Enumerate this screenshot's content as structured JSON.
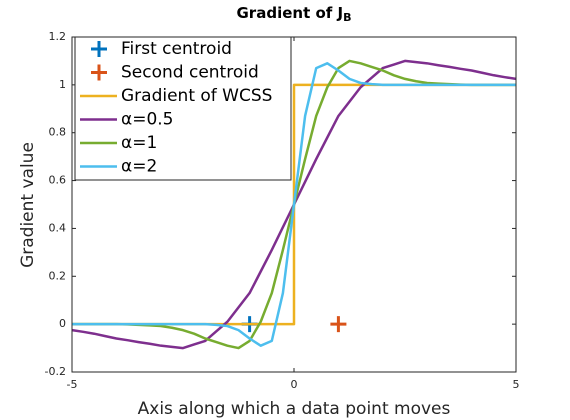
{
  "chart_data": {
    "type": "line",
    "title": "Gradient of J",
    "title_subscript": "B",
    "xlabel": "Axis along which a data point moves",
    "ylabel": "Gradient value",
    "xlim": [
      -5,
      5
    ],
    "ylim": [
      -0.2,
      1.2
    ],
    "xticks": [
      -5,
      0,
      5
    ],
    "yticks": [
      -0.2,
      0,
      0.2,
      0.4,
      0.6,
      0.8,
      1,
      1.2
    ],
    "grid": false,
    "legend": "upper left",
    "x": [
      -5,
      -4.75,
      -4.5,
      -4.25,
      -4,
      -3.75,
      -3.5,
      -3.25,
      -3,
      -2.75,
      -2.5,
      -2.25,
      -2,
      -1.75,
      -1.5,
      -1.25,
      -1,
      -0.75,
      -0.5,
      -0.25,
      0,
      0.25,
      0.5,
      0.75,
      1,
      1.25,
      1.5,
      1.75,
      2,
      2.25,
      2.5,
      2.75,
      3,
      3.25,
      3.5,
      3.75,
      4,
      4.25,
      4.5,
      4.75,
      5
    ],
    "series": [
      {
        "name": "First centroid",
        "color": "#0072bd",
        "marker": "+",
        "x": [
          -1
        ],
        "values": [
          0
        ]
      },
      {
        "name": "Second centroid",
        "color": "#d95319",
        "marker": "+",
        "x": [
          1
        ],
        "values": [
          0
        ]
      },
      {
        "name": "Gradient of WCSS",
        "color": "#edb120",
        "x": [
          -5,
          0,
          0,
          5
        ],
        "values": [
          0,
          0,
          1,
          1
        ]
      },
      {
        "name": "α=0.5",
        "color": "#7e2f8e",
        "values": [
          -0.025,
          -0.032,
          -0.04,
          -0.05,
          -0.06,
          -0.067,
          -0.075,
          -0.082,
          -0.09,
          -0.095,
          -0.1,
          -0.085,
          -0.07,
          -0.03,
          0.01,
          0.07,
          0.13,
          0.22,
          0.31,
          0.405,
          0.5,
          0.595,
          0.69,
          0.78,
          0.87,
          0.93,
          0.99,
          1.03,
          1.07,
          1.085,
          1.1,
          1.095,
          1.09,
          1.082,
          1.075,
          1.067,
          1.06,
          1.05,
          1.04,
          1.032,
          1.025
        ]
      },
      {
        "name": "α=1",
        "color": "#77ac30",
        "values": [
          0,
          0,
          0,
          0,
          0,
          -0.001,
          -0.003,
          -0.005,
          -0.008,
          -0.015,
          -0.025,
          -0.04,
          -0.06,
          -0.075,
          -0.09,
          -0.1,
          -0.07,
          0.01,
          0.13,
          0.31,
          0.5,
          0.69,
          0.87,
          0.99,
          1.07,
          1.1,
          1.09,
          1.075,
          1.06,
          1.04,
          1.025,
          1.015,
          1.008,
          1.005,
          1.003,
          1.001,
          1,
          1,
          1,
          1,
          1
        ]
      },
      {
        "name": "α=2",
        "color": "#4dbeee",
        "values": [
          0,
          0,
          0,
          0,
          0,
          0,
          0,
          0,
          0,
          0,
          0,
          0,
          0,
          -0.003,
          -0.008,
          -0.025,
          -0.06,
          -0.09,
          -0.07,
          0.13,
          0.5,
          0.87,
          1.07,
          1.09,
          1.06,
          1.025,
          1.008,
          1.003,
          1,
          1,
          1,
          1,
          1,
          1,
          1,
          1,
          1,
          1,
          1,
          1,
          1
        ]
      }
    ]
  }
}
